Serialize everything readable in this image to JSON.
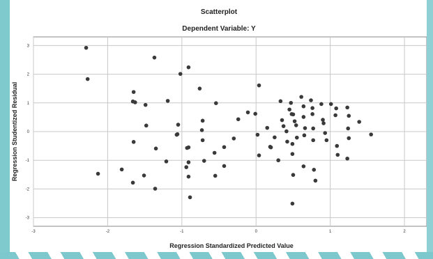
{
  "chart_data": {
    "type": "scatter",
    "title": "Scatterplot",
    "subtitle": "Dependent Variable: Y",
    "xlabel": "Regression Standardized Predicted Value",
    "ylabel": "Regression Studentized Residual",
    "xlim": [
      -3.0,
      2.3
    ],
    "ylim": [
      -3.3,
      3.3
    ],
    "xticks": [
      "-3",
      "-2",
      "-1",
      "0",
      "1",
      "2"
    ],
    "yticks": [
      "3",
      "2",
      "1",
      "0",
      "-1",
      "-2",
      "-3"
    ],
    "grid": true,
    "marker_color": "#3a3a3a",
    "gridline_color": "#c8c8c8",
    "points": [
      [
        -2.29,
        2.92
      ],
      [
        -2.27,
        1.83
      ],
      [
        -1.37,
        2.58
      ],
      [
        -1.02,
        2.01
      ],
      [
        -0.91,
        2.24
      ],
      [
        -0.76,
        1.5
      ],
      [
        -1.65,
        1.38
      ],
      [
        -1.66,
        1.05
      ],
      [
        -1.63,
        1.02
      ],
      [
        -1.49,
        0.93
      ],
      [
        -1.19,
        1.07
      ],
      [
        -0.54,
        0.99
      ],
      [
        0.04,
        1.61
      ],
      [
        -1.48,
        0.21
      ],
      [
        -1.05,
        0.24
      ],
      [
        -1.07,
        -0.11
      ],
      [
        -1.06,
        -0.09
      ],
      [
        -0.72,
        0.38
      ],
      [
        -0.73,
        0.05
      ],
      [
        -0.24,
        0.43
      ],
      [
        -0.11,
        0.67
      ],
      [
        -0.01,
        0.62
      ],
      [
        -1.65,
        -0.36
      ],
      [
        -1.35,
        -0.59
      ],
      [
        -0.91,
        -0.55
      ],
      [
        -0.93,
        -0.57
      ],
      [
        -0.72,
        -0.3
      ],
      [
        -0.56,
        -0.74
      ],
      [
        -0.43,
        -0.54
      ],
      [
        -0.3,
        -0.24
      ],
      [
        -1.21,
        -1.04
      ],
      [
        -0.91,
        -1.07
      ],
      [
        -0.94,
        -1.24
      ],
      [
        -0.7,
        -1.02
      ],
      [
        -0.43,
        -1.2
      ],
      [
        -2.13,
        -1.47
      ],
      [
        -1.81,
        -1.32
      ],
      [
        -1.66,
        -1.78
      ],
      [
        -1.51,
        -1.53
      ],
      [
        -1.36,
        -1.99
      ],
      [
        -0.91,
        -1.57
      ],
      [
        -0.55,
        -1.54
      ],
      [
        -0.89,
        -2.29
      ],
      [
        0.02,
        -0.11
      ],
      [
        0.04,
        -0.83
      ],
      [
        0.15,
        0.13
      ],
      [
        0.19,
        -0.53
      ],
      [
        0.2,
        -0.55
      ],
      [
        0.25,
        -0.2
      ],
      [
        0.3,
        -1.0
      ],
      [
        0.33,
        1.06
      ],
      [
        0.35,
        0.4
      ],
      [
        0.37,
        0.19
      ],
      [
        0.41,
        0.01
      ],
      [
        0.42,
        -0.35
      ],
      [
        0.45,
        0.77
      ],
      [
        0.47,
        1.0
      ],
      [
        0.48,
        0.61
      ],
      [
        0.5,
        0.6
      ],
      [
        0.52,
        0.36
      ],
      [
        0.54,
        0.22
      ],
      [
        0.55,
        -0.21
      ],
      [
        0.49,
        -0.43
      ],
      [
        0.49,
        -0.78
      ],
      [
        0.5,
        -1.51
      ],
      [
        0.49,
        -2.51
      ],
      [
        0.61,
        1.21
      ],
      [
        0.64,
        0.88
      ],
      [
        0.64,
        0.51
      ],
      [
        0.66,
        0.12
      ],
      [
        0.65,
        -0.13
      ],
      [
        0.64,
        -1.21
      ],
      [
        0.74,
        1.09
      ],
      [
        0.76,
        0.82
      ],
      [
        0.76,
        0.61
      ],
      [
        0.77,
        0.11
      ],
      [
        0.77,
        -0.3
      ],
      [
        0.78,
        -1.33
      ],
      [
        0.8,
        -1.71
      ],
      [
        0.88,
        0.96
      ],
      [
        0.9,
        0.41
      ],
      [
        0.91,
        0.29
      ],
      [
        0.93,
        -0.05
      ],
      [
        0.95,
        -0.3
      ],
      [
        1.01,
        0.96
      ],
      [
        1.08,
        0.81
      ],
      [
        1.07,
        0.57
      ],
      [
        1.09,
        -0.5
      ],
      [
        1.1,
        -0.81
      ],
      [
        1.23,
        0.84
      ],
      [
        1.25,
        0.55
      ],
      [
        1.24,
        0.11
      ],
      [
        1.25,
        -0.23
      ],
      [
        1.23,
        -0.94
      ],
      [
        1.39,
        0.34
      ],
      [
        1.55,
        -0.1
      ]
    ]
  }
}
